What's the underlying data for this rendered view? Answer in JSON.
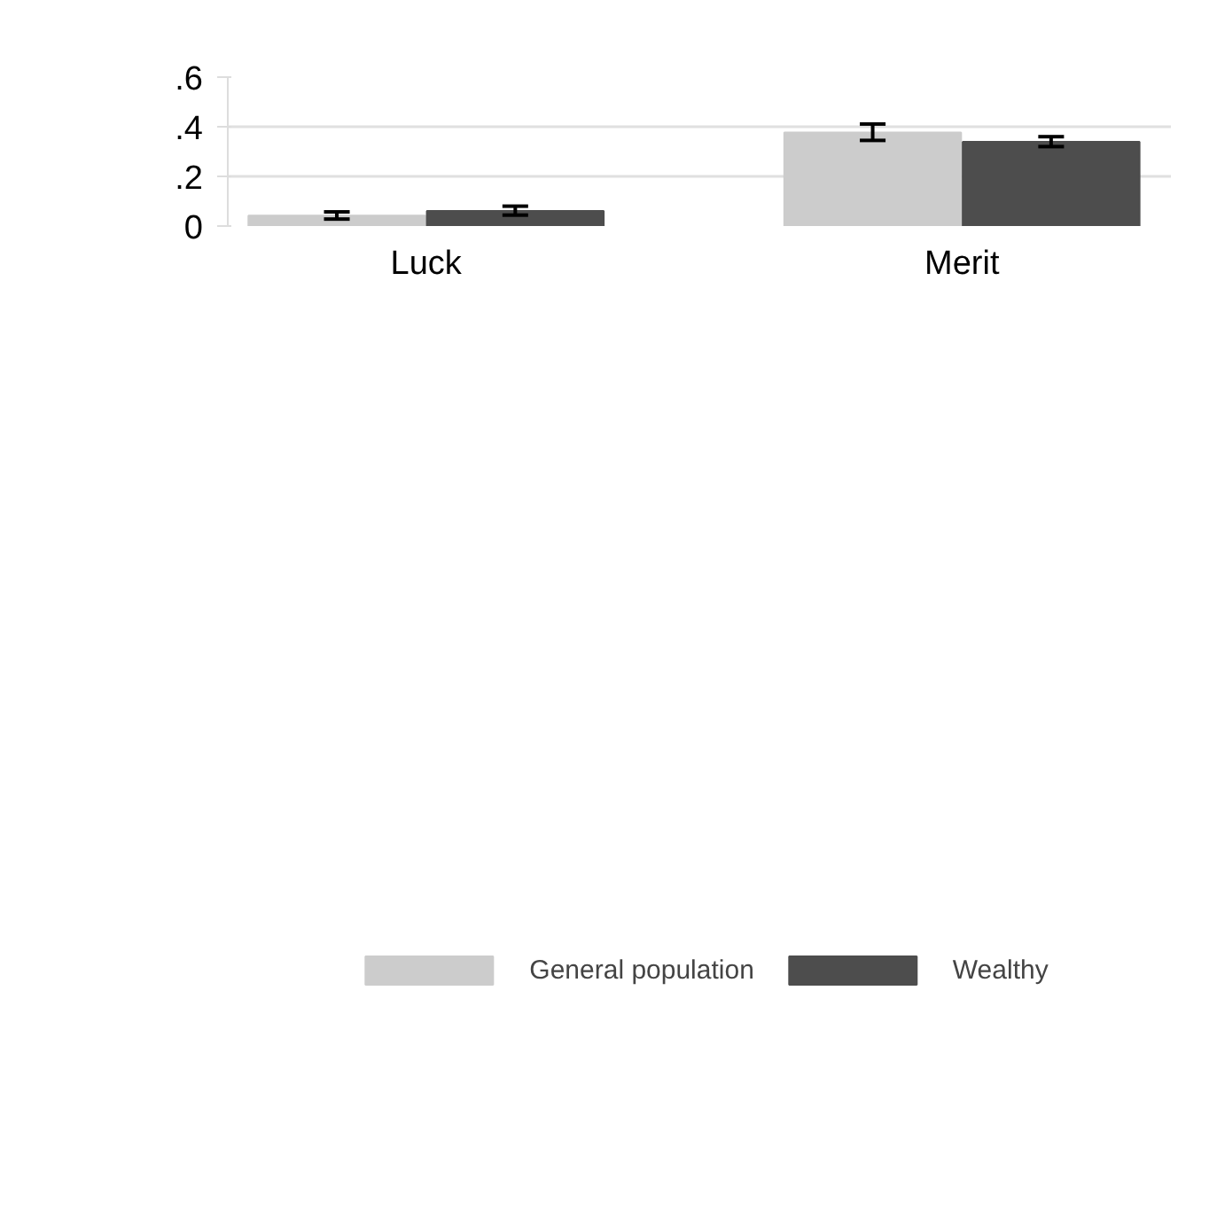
{
  "chart_data": {
    "type": "bar",
    "categories": [
      "Luck",
      "Merit"
    ],
    "series": [
      {
        "name": "General population",
        "color": "#cccccc",
        "values": [
          0.042,
          0.377
        ],
        "errors": [
          [
            0.028,
            0.057
          ],
          [
            0.345,
            0.411
          ]
        ]
      },
      {
        "name": "Wealthy",
        "color": "#4d4d4d",
        "values": [
          0.061,
          0.339
        ],
        "errors": [
          [
            0.044,
            0.08
          ],
          [
            0.32,
            0.36
          ]
        ]
      }
    ],
    "ylim": [
      0,
      0.6
    ],
    "yticks": [
      {
        "value": 0,
        "label": "0"
      },
      {
        "value": 0.2,
        "label": ".2"
      },
      {
        "value": 0.4,
        "label": ".4"
      },
      {
        "value": 0.6,
        "label": ".6"
      }
    ],
    "grid": "y",
    "legend": "bottom"
  }
}
